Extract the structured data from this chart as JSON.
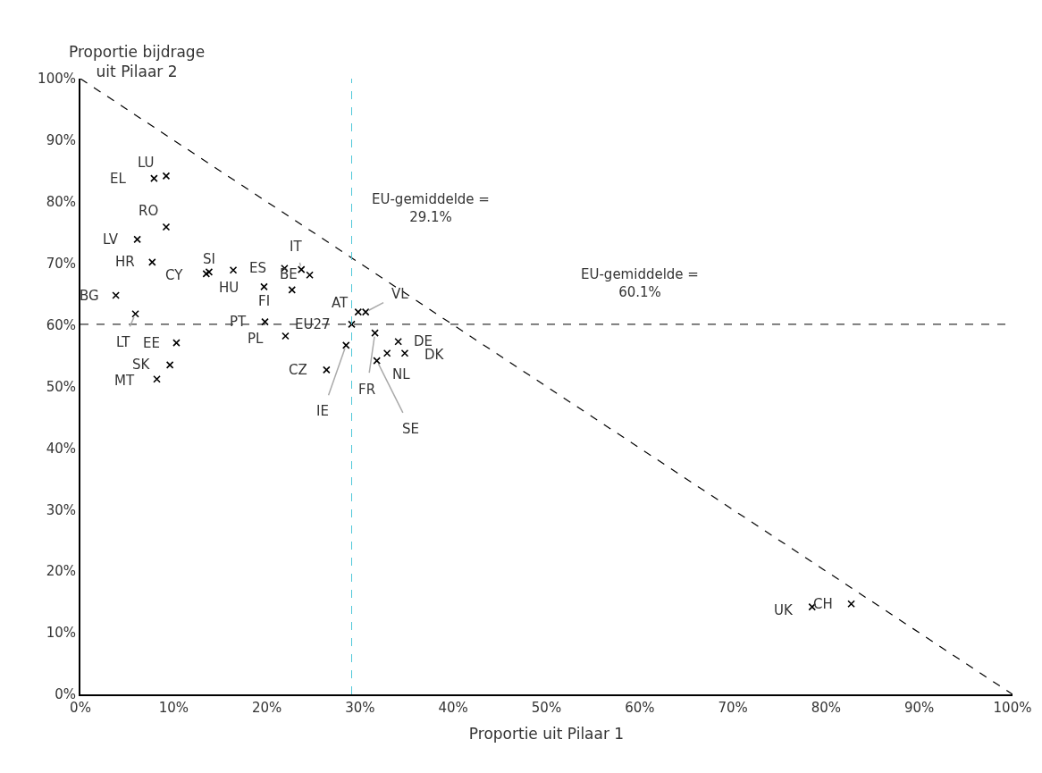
{
  "chart_data": {
    "type": "scatter",
    "xlabel": "Proportie uit Pilaar 1",
    "ylabel": "Proportie bijdrage\nuit Pilaar 2",
    "xlim": [
      0,
      100
    ],
    "ylim": [
      0,
      100
    ],
    "xticks": [
      {
        "value": 0,
        "label": "0%"
      },
      {
        "value": 10,
        "label": "10%"
      },
      {
        "value": 20,
        "label": "20%"
      },
      {
        "value": 30,
        "label": "30%"
      },
      {
        "value": 40,
        "label": "40%"
      },
      {
        "value": 50,
        "label": "50%"
      },
      {
        "value": 60,
        "label": "60%"
      },
      {
        "value": 70,
        "label": "70%"
      },
      {
        "value": 80,
        "label": "80%"
      },
      {
        "value": 90,
        "label": "90%"
      },
      {
        "value": 100,
        "label": "100%"
      }
    ],
    "yticks": [
      {
        "value": 0,
        "label": "0%"
      },
      {
        "value": 10,
        "label": "10%"
      },
      {
        "value": 20,
        "label": "20%"
      },
      {
        "value": 30,
        "label": "30%"
      },
      {
        "value": 40,
        "label": "40%"
      },
      {
        "value": 50,
        "label": "50%"
      },
      {
        "value": 60,
        "label": "60%"
      },
      {
        "value": 70,
        "label": "70%"
      },
      {
        "value": 80,
        "label": "80%"
      },
      {
        "value": 90,
        "label": "90%"
      },
      {
        "value": 100,
        "label": "100%"
      }
    ],
    "series": [
      {
        "marker": "cross",
        "color": "#000000",
        "x": [
          7.9,
          9.2,
          9.2,
          6.1,
          7.7,
          13.5,
          13.8,
          16.4,
          21.9,
          23.7,
          24.6,
          19.7,
          22.7,
          3.8,
          5.9,
          10.3,
          9.6,
          8.2,
          19.8,
          22.0,
          29.1,
          29.8,
          30.6,
          28.5,
          26.4,
          31.6,
          31.8,
          32.9,
          34.1,
          34.8,
          78.5,
          82.7
        ],
        "values": [
          83.8,
          84.2,
          75.9,
          73.9,
          70.2,
          68.3,
          68.6,
          68.9,
          69.2,
          69.0,
          68.1,
          66.2,
          65.7,
          64.8,
          61.8,
          57.1,
          53.5,
          51.2,
          60.5,
          58.2,
          60.1,
          62.1,
          62.1,
          56.7,
          52.7,
          58.7,
          54.2,
          55.4,
          57.3,
          55.4,
          14.2,
          14.7
        ]
      },
      {
        "type": "line",
        "color": "#000000",
        "line_style": "dashed",
        "x": [
          0,
          100
        ],
        "values": [
          100,
          0
        ]
      }
    ],
    "annotations": [
      {
        "text": "EL",
        "x": 7.9,
        "y": 83.8
      },
      {
        "text": "LU",
        "x": 9.2,
        "y": 84.2
      },
      {
        "text": "RO",
        "x": 9.2,
        "y": 75.9
      },
      {
        "text": "LV",
        "x": 6.1,
        "y": 73.9
      },
      {
        "text": "HR",
        "x": 7.7,
        "y": 70.2
      },
      {
        "text": "CY",
        "x": 13.5,
        "y": 68.3
      },
      {
        "text": "SI",
        "x": 13.8,
        "y": 68.6
      },
      {
        "text": "HU",
        "x": 16.4,
        "y": 68.9
      },
      {
        "text": "ES",
        "x": 21.9,
        "y": 69.2
      },
      {
        "text": "IT",
        "x": 23.7,
        "y": 69.0
      },
      {
        "text": "FI",
        "x": 19.7,
        "y": 66.2
      },
      {
        "text": "BE",
        "x": 22.7,
        "y": 65.7
      },
      {
        "text": "BG",
        "x": 3.8,
        "y": 64.8
      },
      {
        "text": "LT",
        "x": 5.9,
        "y": 61.8
      },
      {
        "text": "EE",
        "x": 10.3,
        "y": 57.1
      },
      {
        "text": "SK",
        "x": 9.6,
        "y": 53.5
      },
      {
        "text": "MT",
        "x": 8.2,
        "y": 51.2
      },
      {
        "text": "PT",
        "x": 19.8,
        "y": 60.5
      },
      {
        "text": "PL",
        "x": 22.0,
        "y": 58.2
      },
      {
        "text": "EU27",
        "x": 29.1,
        "y": 60.1
      },
      {
        "text": "AT",
        "x": 29.8,
        "y": 62.1
      },
      {
        "text": "VL",
        "x": 30.6,
        "y": 62.1
      },
      {
        "text": "IE",
        "x": 28.5,
        "y": 56.7
      },
      {
        "text": "CZ",
        "x": 26.4,
        "y": 52.7
      },
      {
        "text": "FR",
        "x": 31.6,
        "y": 58.7
      },
      {
        "text": "SE",
        "x": 31.8,
        "y": 54.2
      },
      {
        "text": "NL",
        "x": 32.9,
        "y": 55.4
      },
      {
        "text": "DE",
        "x": 34.1,
        "y": 57.3
      },
      {
        "text": "DK",
        "x": 34.8,
        "y": 55.4
      },
      {
        "text": "UK",
        "x": 78.5,
        "y": 14.2
      },
      {
        "text": "CH",
        "x": 82.7,
        "y": 14.7
      }
    ],
    "ref_lines": [
      {
        "axis": "x",
        "value": 29.1,
        "label": "EU-gemiddelde =\n29.1%",
        "color": "#4fc8d8",
        "line_style": "dashed"
      },
      {
        "axis": "y",
        "value": 60.1,
        "label": "EU-gemiddelde =\n60.1%",
        "color": "#000000",
        "line_style": "dashed"
      }
    ]
  }
}
